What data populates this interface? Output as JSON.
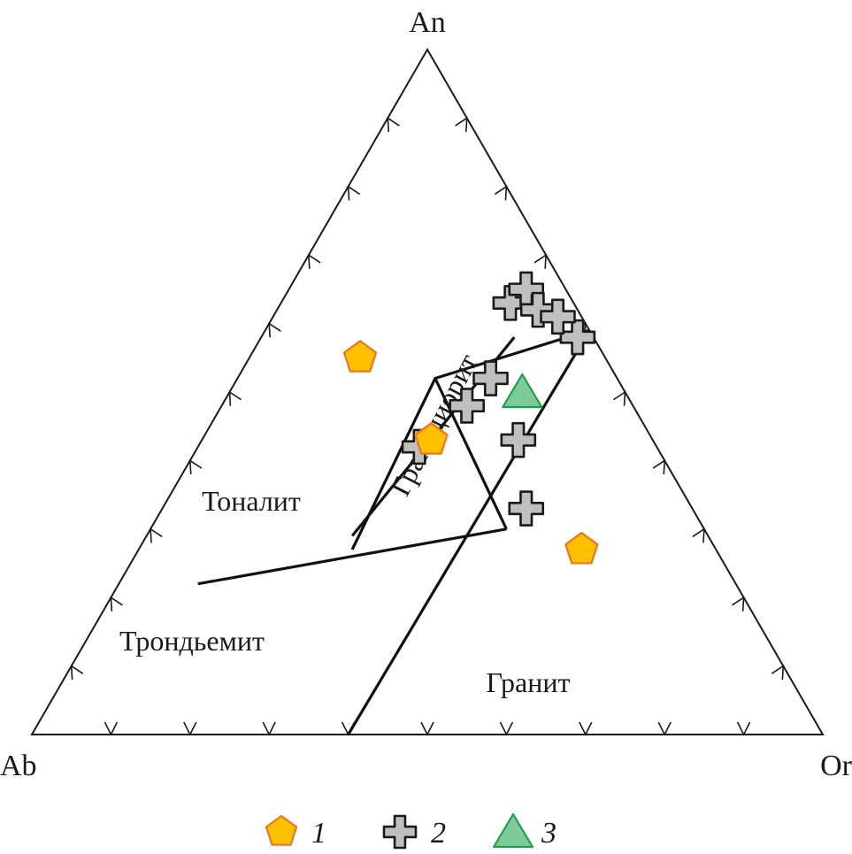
{
  "chart_data": {
    "type": "scatter",
    "subtype": "ternary",
    "vertices": {
      "top": "An",
      "left": "Ab",
      "right": "Or"
    },
    "tick_step": 0.1,
    "fields": [
      {
        "label": "Тоналит",
        "rotated": false
      },
      {
        "label": "Гранодиорит",
        "rotated": true
      },
      {
        "label": "Трондьемит",
        "rotated": false
      },
      {
        "label": "Гранит",
        "rotated": false
      }
    ],
    "boundaries": [
      [
        [
          0.59,
          0.0,
          0.41
        ],
        [
          0.0,
          0.6,
          0.4
        ]
      ],
      [
        [
          0.3,
          0.25,
          0.45
        ],
        [
          0.52,
          0.23,
          0.25
        ],
        [
          0.59,
          0.0,
          0.41
        ]
      ],
      [
        [
          0.3,
          0.25,
          0.45
        ],
        [
          0.22,
          0.68,
          0.1
        ]
      ],
      [
        [
          0.52,
          0.23,
          0.25
        ],
        [
          0.27,
          0.46,
          0.27
        ]
      ],
      [
        [
          0.58,
          0.1,
          0.32
        ],
        [
          0.29,
          0.45,
          0.26
        ]
      ]
    ],
    "series": [
      {
        "name": "1",
        "marker": "pentagon",
        "color": "#FFC000",
        "stroke": "#E87722",
        "points": [
          [
            0.55,
            0.31,
            0.14
          ],
          [
            0.43,
            0.28,
            0.29
          ],
          [
            0.27,
            0.17,
            0.56
          ]
        ]
      },
      {
        "name": "2",
        "marker": "cross",
        "color": "#BFBFBF",
        "stroke": "#1a1a1a",
        "points": [
          [
            0.42,
            0.3,
            0.28
          ],
          [
            0.48,
            0.21,
            0.31
          ],
          [
            0.33,
            0.21,
            0.46
          ],
          [
            0.43,
            0.17,
            0.4
          ],
          [
            0.52,
            0.16,
            0.32
          ],
          [
            0.63,
            0.08,
            0.29
          ],
          [
            0.65,
            0.05,
            0.3
          ],
          [
            0.62,
            0.05,
            0.33
          ],
          [
            0.58,
            0.02,
            0.4
          ],
          [
            0.61,
            0.03,
            0.36
          ]
        ]
      },
      {
        "name": "3",
        "marker": "triangle",
        "color": "#7CC99A",
        "stroke": "#1E9E4A",
        "points": [
          [
            0.5,
            0.13,
            0.37
          ]
        ]
      }
    ],
    "legend": {
      "placement": "bottom",
      "entries": [
        "1",
        "2",
        "3"
      ]
    }
  }
}
